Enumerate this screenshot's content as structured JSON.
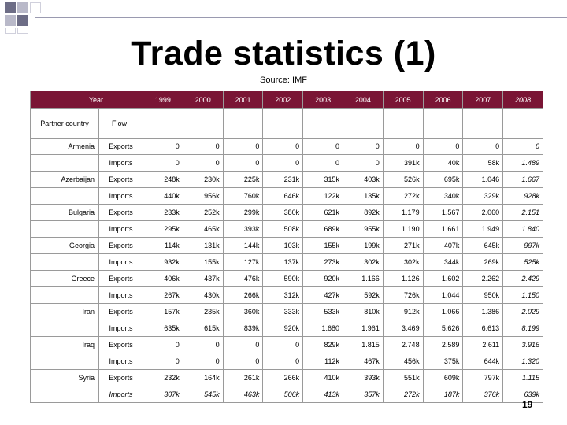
{
  "slide": {
    "title": "Trade statistics (1)",
    "source": "Source: IMF",
    "page_number": "19"
  },
  "table": {
    "year_label": "Year",
    "partner_label": "Partner country",
    "flow_label": "Flow",
    "years": [
      "1999",
      "2000",
      "2001",
      "2002",
      "2003",
      "2004",
      "2005",
      "2006",
      "2007",
      "2008"
    ],
    "rows": [
      {
        "country": "Armenia",
        "flow": "Exports",
        "values": [
          "0",
          "0",
          "0",
          "0",
          "0",
          "0",
          "0",
          "0",
          "0",
          "0"
        ]
      },
      {
        "country": "",
        "flow": "Imports",
        "values": [
          "0",
          "0",
          "0",
          "0",
          "0",
          "0",
          "391k",
          "40k",
          "58k",
          "1.489"
        ]
      },
      {
        "country": "Azerbaijan",
        "flow": "Exports",
        "values": [
          "248k",
          "230k",
          "225k",
          "231k",
          "315k",
          "403k",
          "526k",
          "695k",
          "1.046",
          "1.667"
        ]
      },
      {
        "country": "",
        "flow": "Imports",
        "values": [
          "440k",
          "956k",
          "760k",
          "646k",
          "122k",
          "135k",
          "272k",
          "340k",
          "329k",
          "928k"
        ]
      },
      {
        "country": "Bulgaria",
        "flow": "Exports",
        "values": [
          "233k",
          "252k",
          "299k",
          "380k",
          "621k",
          "892k",
          "1.179",
          "1.567",
          "2.060",
          "2.151"
        ]
      },
      {
        "country": "",
        "flow": "Imports",
        "values": [
          "295k",
          "465k",
          "393k",
          "508k",
          "689k",
          "955k",
          "1.190",
          "1.661",
          "1.949",
          "1.840"
        ]
      },
      {
        "country": "Georgia",
        "flow": "Exports",
        "values": [
          "114k",
          "131k",
          "144k",
          "103k",
          "155k",
          "199k",
          "271k",
          "407k",
          "645k",
          "997k"
        ]
      },
      {
        "country": "",
        "flow": "Imports",
        "values": [
          "932k",
          "155k",
          "127k",
          "137k",
          "273k",
          "302k",
          "302k",
          "344k",
          "269k",
          "525k"
        ]
      },
      {
        "country": "Greece",
        "flow": "Exports",
        "values": [
          "406k",
          "437k",
          "476k",
          "590k",
          "920k",
          "1.166",
          "1.126",
          "1.602",
          "2.262",
          "2.429"
        ]
      },
      {
        "country": "",
        "flow": "Imports",
        "values": [
          "267k",
          "430k",
          "266k",
          "312k",
          "427k",
          "592k",
          "726k",
          "1.044",
          "950k",
          "1.150"
        ]
      },
      {
        "country": "Iran",
        "flow": "Exports",
        "values": [
          "157k",
          "235k",
          "360k",
          "333k",
          "533k",
          "810k",
          "912k",
          "1.066",
          "1.386",
          "2.029"
        ]
      },
      {
        "country": "",
        "flow": "Imports",
        "values": [
          "635k",
          "615k",
          "839k",
          "920k",
          "1.680",
          "1.961",
          "3.469",
          "5.626",
          "6.613",
          "8.199"
        ]
      },
      {
        "country": "Iraq",
        "flow": "Exports",
        "values": [
          "0",
          "0",
          "0",
          "0",
          "829k",
          "1.815",
          "2.748",
          "2.589",
          "2.611",
          "3.916"
        ]
      },
      {
        "country": "",
        "flow": "Imports",
        "values": [
          "0",
          "0",
          "0",
          "0",
          "112k",
          "467k",
          "456k",
          "375k",
          "644k",
          "1.320"
        ]
      },
      {
        "country": "Syria",
        "flow": "Exports",
        "values": [
          "232k",
          "164k",
          "261k",
          "266k",
          "410k",
          "393k",
          "551k",
          "609k",
          "797k",
          "1.115"
        ]
      },
      {
        "country": "",
        "flow": "Imports",
        "values": [
          "307k",
          "545k",
          "463k",
          "506k",
          "413k",
          "357k",
          "272k",
          "187k",
          "376k",
          "639k"
        ]
      }
    ]
  }
}
